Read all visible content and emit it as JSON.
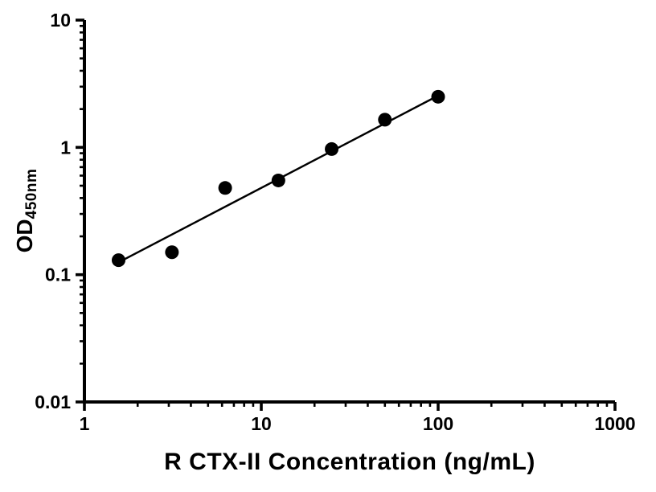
{
  "chart_data": {
    "type": "scatter",
    "title": "",
    "xlabel": "R CTX-II Concentration (ng/mL)",
    "ylabel_main": "OD",
    "ylabel_sub": "450nm",
    "x_scale": "log",
    "y_scale": "log",
    "xlim": [
      1,
      1000
    ],
    "ylim": [
      0.01,
      10
    ],
    "x_ticks": [
      1,
      10,
      100,
      1000
    ],
    "x_tick_labels": [
      "1",
      "10",
      "100",
      "1000"
    ],
    "y_ticks": [
      0.01,
      0.1,
      1,
      10
    ],
    "y_tick_labels": [
      "0.01",
      "0.1",
      "1",
      "10"
    ],
    "grid": false,
    "legend": null,
    "marker_color": "#000000",
    "line_color": "#000000",
    "points": [
      {
        "x": 1.56,
        "y": 0.13
      },
      {
        "x": 3.125,
        "y": 0.15
      },
      {
        "x": 6.25,
        "y": 0.48
      },
      {
        "x": 12.5,
        "y": 0.55
      },
      {
        "x": 25,
        "y": 0.97
      },
      {
        "x": 50,
        "y": 1.65
      },
      {
        "x": 100,
        "y": 2.5
      }
    ],
    "trendline": {
      "x1": 1.56,
      "y1": 0.125,
      "x2": 100,
      "y2": 2.55
    }
  }
}
